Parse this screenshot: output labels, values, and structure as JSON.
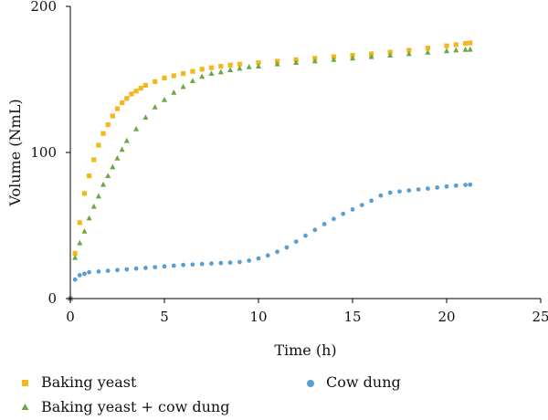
{
  "chart_data": {
    "type": "scatter",
    "title": "",
    "xlabel": "Time (h)",
    "ylabel": "Volume (NmL)",
    "xlim": [
      0,
      25
    ],
    "ylim": [
      0,
      200
    ],
    "xticks": [
      "0",
      "5",
      "10",
      "15",
      "20",
      "25"
    ],
    "yticks": [
      "0",
      "100",
      "200"
    ],
    "grid": false,
    "legend_position": "bottom",
    "series": [
      {
        "name": "Baking yeast",
        "marker": "square",
        "color": "#f4b81c",
        "points": [
          [
            0,
            0
          ],
          [
            0.25,
            31
          ],
          [
            0.5,
            52
          ],
          [
            0.75,
            72
          ],
          [
            1.0,
            84
          ],
          [
            1.25,
            95
          ],
          [
            1.5,
            105
          ],
          [
            1.75,
            113
          ],
          [
            2.0,
            119
          ],
          [
            2.25,
            125
          ],
          [
            2.5,
            130
          ],
          [
            2.75,
            134
          ],
          [
            3.0,
            137
          ],
          [
            3.25,
            140
          ],
          [
            3.5,
            142
          ],
          [
            3.75,
            144
          ],
          [
            4.0,
            146
          ],
          [
            4.5,
            148.5
          ],
          [
            5.0,
            151
          ],
          [
            5.5,
            152.5
          ],
          [
            6.0,
            154
          ],
          [
            6.5,
            155.5
          ],
          [
            7.0,
            157
          ],
          [
            7.5,
            158
          ],
          [
            8.0,
            159
          ],
          [
            8.5,
            159.8
          ],
          [
            9.0,
            160.5
          ],
          [
            10.0,
            161.5
          ],
          [
            11.0,
            162.5
          ],
          [
            12.0,
            163.5
          ],
          [
            13.0,
            164.5
          ],
          [
            14.0,
            165.5
          ],
          [
            15.0,
            166.5
          ],
          [
            16.0,
            167.5
          ],
          [
            17.0,
            168.7
          ],
          [
            18.0,
            170
          ],
          [
            19.0,
            171.5
          ],
          [
            20.0,
            173
          ],
          [
            20.5,
            173.8
          ],
          [
            21.0,
            174.6
          ],
          [
            21.25,
            175
          ]
        ]
      },
      {
        "name": "Baking yeast + cow dung",
        "marker": "triangle",
        "color": "#6aa843",
        "points": [
          [
            0,
            0
          ],
          [
            0.25,
            28
          ],
          [
            0.5,
            38
          ],
          [
            0.75,
            46
          ],
          [
            1.0,
            55
          ],
          [
            1.25,
            63
          ],
          [
            1.5,
            70
          ],
          [
            1.75,
            78
          ],
          [
            2.0,
            84
          ],
          [
            2.25,
            90
          ],
          [
            2.5,
            96
          ],
          [
            2.75,
            102
          ],
          [
            3.0,
            108
          ],
          [
            3.5,
            116
          ],
          [
            4.0,
            124
          ],
          [
            4.5,
            131
          ],
          [
            5.0,
            136
          ],
          [
            5.5,
            141
          ],
          [
            6.0,
            145
          ],
          [
            6.5,
            149
          ],
          [
            7.0,
            152
          ],
          [
            7.5,
            154
          ],
          [
            8.0,
            155
          ],
          [
            8.5,
            156.5
          ],
          [
            9.0,
            157.5
          ],
          [
            9.5,
            158.5
          ],
          [
            10.0,
            159
          ],
          [
            11.0,
            160.5
          ],
          [
            12.0,
            161.5
          ],
          [
            13.0,
            162.5
          ],
          [
            14.0,
            163.5
          ],
          [
            15.0,
            164.5
          ],
          [
            16.0,
            165.5
          ],
          [
            17.0,
            166.5
          ],
          [
            18.0,
            167.5
          ],
          [
            19.0,
            168.5
          ],
          [
            20.0,
            169.5
          ],
          [
            20.5,
            170
          ],
          [
            21.0,
            170.4
          ],
          [
            21.25,
            170.5
          ]
        ]
      },
      {
        "name": "Cow dung",
        "marker": "circle",
        "color": "#5a9fd4",
        "points": [
          [
            0,
            0
          ],
          [
            0.25,
            13
          ],
          [
            0.5,
            16
          ],
          [
            0.75,
            17
          ],
          [
            1.0,
            18
          ],
          [
            1.5,
            18.5
          ],
          [
            2.0,
            19
          ],
          [
            2.5,
            19.5
          ],
          [
            3.0,
            20
          ],
          [
            3.5,
            20.5
          ],
          [
            4.0,
            21
          ],
          [
            4.5,
            21.5
          ],
          [
            5.0,
            22
          ],
          [
            5.5,
            22.5
          ],
          [
            6.0,
            23
          ],
          [
            6.5,
            23.3
          ],
          [
            7.0,
            23.6
          ],
          [
            7.5,
            24
          ],
          [
            8.0,
            24.3
          ],
          [
            8.5,
            24.6
          ],
          [
            9.0,
            25
          ],
          [
            9.5,
            26
          ],
          [
            10.0,
            27.5
          ],
          [
            10.5,
            29.5
          ],
          [
            11.0,
            32
          ],
          [
            11.5,
            35
          ],
          [
            12.0,
            39
          ],
          [
            12.5,
            43
          ],
          [
            13.0,
            47
          ],
          [
            13.5,
            51
          ],
          [
            14.0,
            54.5
          ],
          [
            14.5,
            58
          ],
          [
            15.0,
            61
          ],
          [
            15.5,
            64
          ],
          [
            16.0,
            67
          ],
          [
            16.5,
            70.5
          ],
          [
            17.0,
            72.5
          ],
          [
            17.5,
            73.3
          ],
          [
            18.0,
            74
          ],
          [
            18.5,
            74.7
          ],
          [
            19.0,
            75.3
          ],
          [
            19.5,
            76
          ],
          [
            20.0,
            76.7
          ],
          [
            20.5,
            77.3
          ],
          [
            21.0,
            77.8
          ],
          [
            21.25,
            78
          ]
        ]
      }
    ]
  }
}
